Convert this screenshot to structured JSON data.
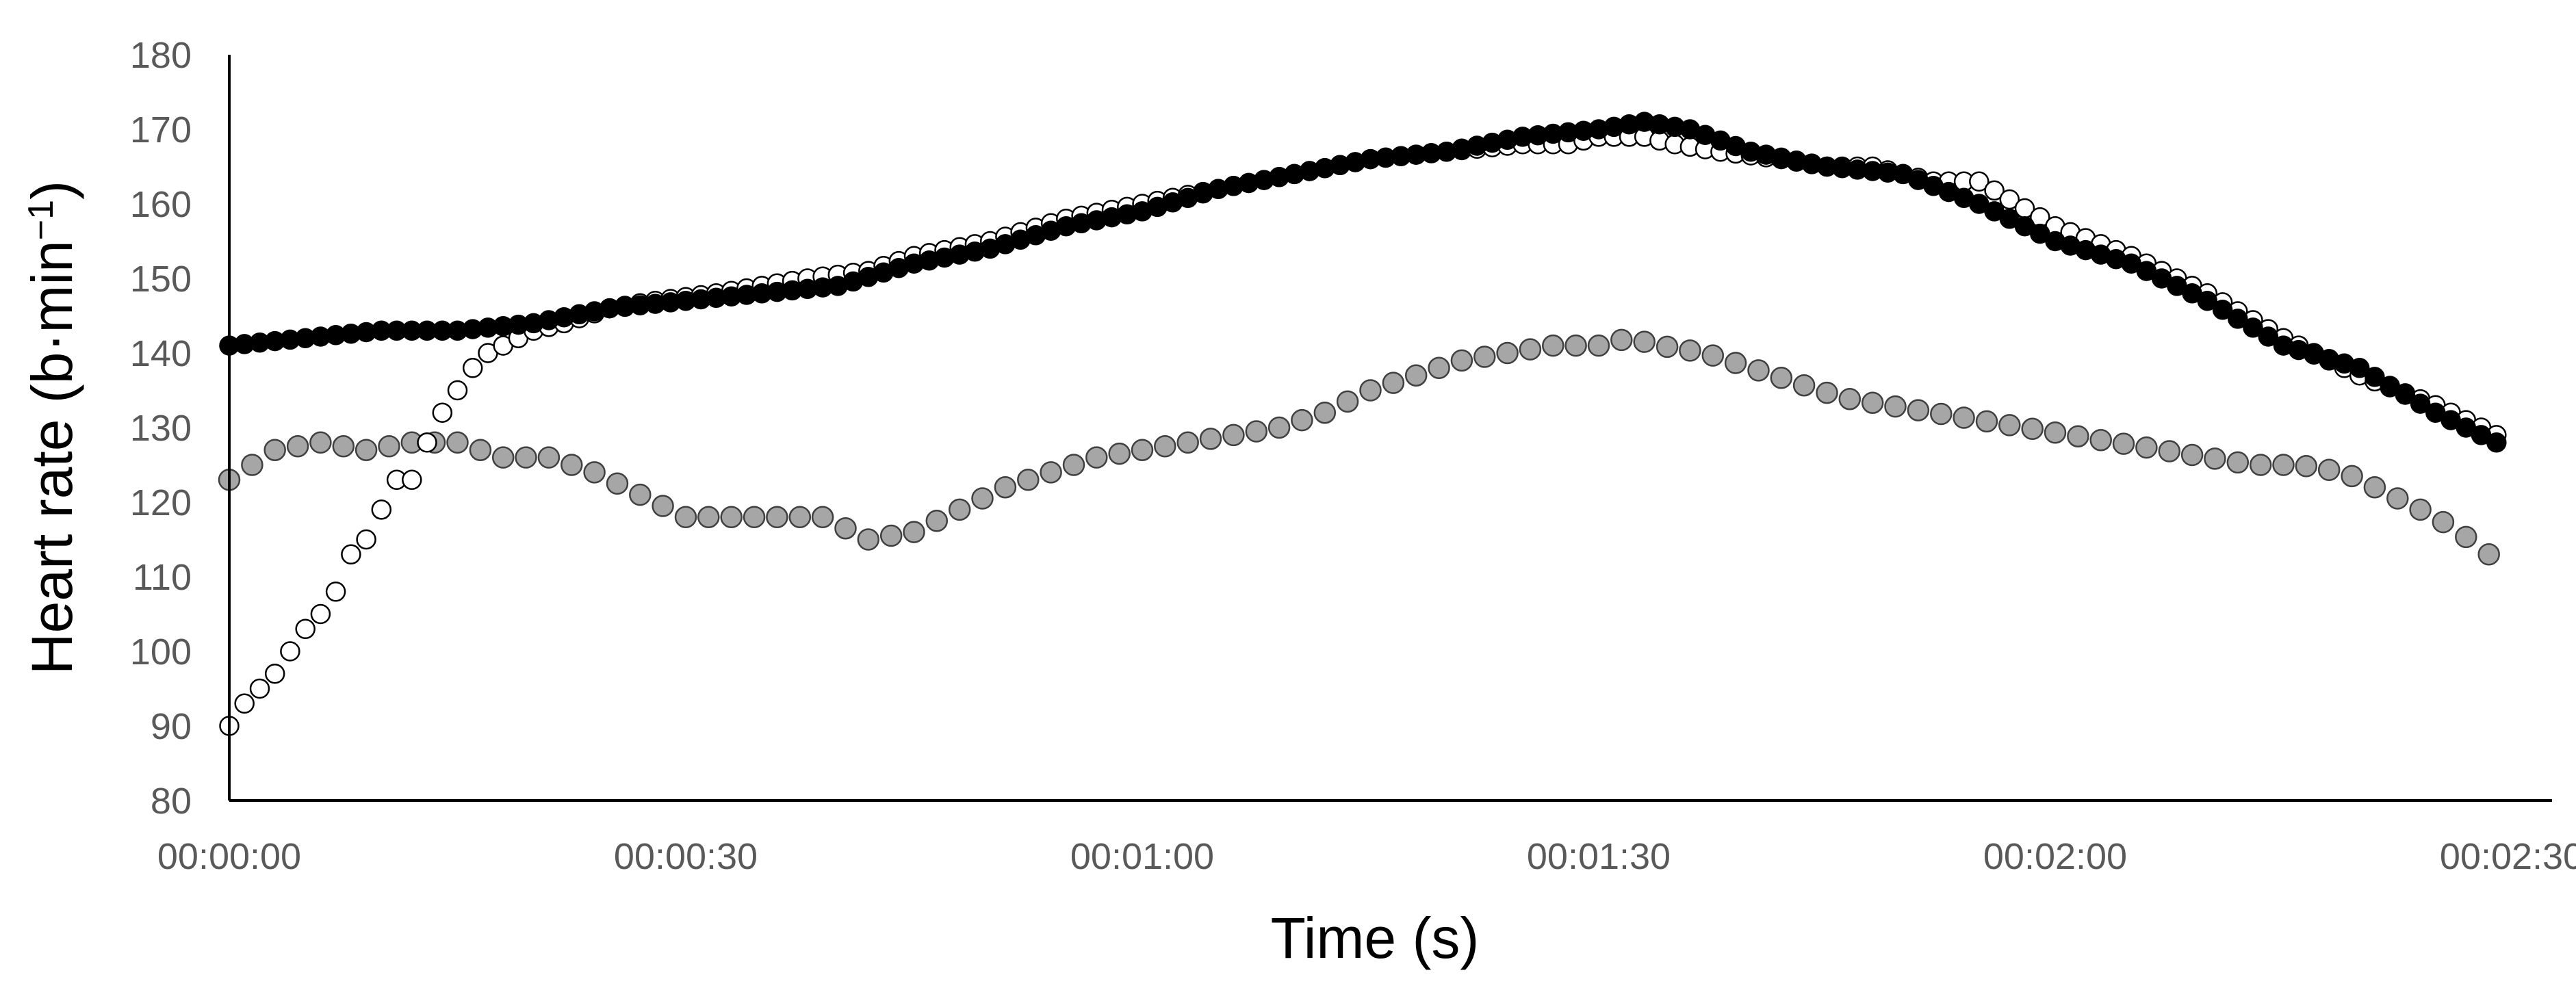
{
  "chart_data": {
    "type": "scatter",
    "title": "",
    "xlabel": "Time (s)",
    "ylabel": "Heart rate (b·min",
    "ylabel_sup": "−1",
    "ylabel_close": ")",
    "ylim": [
      80,
      180
    ],
    "yticks": [
      80,
      90,
      100,
      110,
      120,
      130,
      140,
      150,
      160,
      170,
      180
    ],
    "xlim": [
      "00:00:00",
      "00:02:30"
    ],
    "xticks": [
      "00:00:00",
      "00:00:30",
      "00:01:00",
      "00:01:30",
      "00:02:00",
      "00:02:30"
    ],
    "grid": false,
    "legend": "none",
    "series": [
      {
        "style": "open",
        "fill": "#ffffff",
        "stroke": "#000000",
        "x": [
          "00:00:00",
          "00:00:01",
          "00:00:02",
          "00:00:03",
          "00:00:04",
          "00:00:05",
          "00:00:06",
          "00:00:07",
          "00:00:08",
          "00:00:09",
          "00:00:10",
          "00:00:11",
          "00:00:12",
          "00:00:13",
          "00:00:14",
          "00:00:15",
          "00:00:16",
          "00:00:17",
          "00:00:18",
          "00:00:19",
          "00:00:20",
          "00:00:22",
          "00:00:25",
          "00:00:28",
          "00:00:32",
          "00:00:35",
          "00:00:38",
          "00:00:42",
          "00:00:45",
          "00:00:50",
          "00:00:55",
          "00:01:00",
          "00:01:05",
          "00:01:10",
          "00:01:15",
          "00:01:20",
          "00:01:25",
          "00:01:28",
          "00:01:30",
          "00:01:33",
          "00:01:35",
          "00:01:38",
          "00:01:42",
          "00:01:45",
          "00:01:48",
          "00:01:50",
          "00:01:52",
          "00:01:55",
          "00:02:00",
          "00:02:05",
          "00:02:10",
          "00:02:15",
          "00:02:20",
          "00:02:25",
          "00:02:29"
        ],
        "y": [
          90,
          93,
          95,
          97,
          100,
          103,
          105,
          108,
          113,
          115,
          119,
          123,
          123,
          128,
          132,
          135,
          138,
          140,
          141,
          142,
          143,
          144,
          146,
          147,
          148,
          149,
          150,
          151,
          153,
          155,
          158,
          160,
          162,
          164,
          166,
          167,
          168,
          168,
          169,
          169,
          168,
          167,
          166,
          165,
          165,
          164,
          163,
          163,
          157,
          153,
          148,
          142,
          137,
          133,
          129
        ]
      },
      {
        "style": "filled",
        "fill": "#000000",
        "stroke": "#000000",
        "x": [
          "00:00:00",
          "00:00:05",
          "00:00:10",
          "00:00:15",
          "00:00:20",
          "00:00:25",
          "00:00:30",
          "00:00:35",
          "00:00:40",
          "00:00:45",
          "00:00:50",
          "00:00:55",
          "00:01:00",
          "00:01:05",
          "00:01:10",
          "00:01:15",
          "00:01:20",
          "00:01:25",
          "00:01:30",
          "00:01:33",
          "00:01:36",
          "00:01:40",
          "00:01:45",
          "00:01:50",
          "00:01:55",
          "00:02:00",
          "00:02:05",
          "00:02:10",
          "00:02:15",
          "00:02:20",
          "00:02:25",
          "00:02:29"
        ],
        "y": [
          141,
          142,
          143,
          143,
          144,
          146,
          147,
          148,
          149,
          152,
          154,
          157,
          159,
          162,
          164,
          166,
          167,
          169,
          170,
          171,
          170,
          167,
          165,
          164,
          160,
          155,
          152,
          147,
          141,
          138,
          132,
          128
        ]
      },
      {
        "style": "gray",
        "fill": "#a6a6a6",
        "stroke": "#404040",
        "x": [
          "00:00:00",
          "00:00:03",
          "00:00:06",
          "00:00:09",
          "00:00:12",
          "00:00:15",
          "00:00:18",
          "00:00:21",
          "00:00:24",
          "00:00:27",
          "00:00:30",
          "00:00:33",
          "00:00:36",
          "00:00:39",
          "00:00:42",
          "00:00:45",
          "00:00:48",
          "00:00:51",
          "00:00:54",
          "00:00:57",
          "00:01:00",
          "00:01:03",
          "00:01:06",
          "00:01:09",
          "00:01:12",
          "00:01:15",
          "00:01:18",
          "00:01:21",
          "00:01:24",
          "00:01:27",
          "00:01:30",
          "00:01:32",
          "00:01:34",
          "00:01:37",
          "00:01:40",
          "00:01:43",
          "00:01:46",
          "00:01:49",
          "00:01:52",
          "00:01:55",
          "00:01:58",
          "00:02:01",
          "00:02:04",
          "00:02:07",
          "00:02:10",
          "00:02:13",
          "00:02:16",
          "00:02:19",
          "00:02:22",
          "00:02:25",
          "00:02:28",
          "00:02:29"
        ],
        "y": [
          123,
          127,
          128,
          127,
          128,
          128,
          126,
          126,
          124,
          121,
          118,
          118,
          118,
          118,
          115,
          116,
          119,
          122,
          124,
          126,
          127,
          128,
          129,
          130,
          132,
          135,
          137,
          139,
          140,
          141,
          141,
          142,
          141,
          140,
          138,
          136,
          134,
          133,
          132,
          131,
          130,
          129,
          128,
          127,
          126,
          125,
          125,
          124,
          121,
          118,
          114,
          112
        ]
      }
    ]
  }
}
